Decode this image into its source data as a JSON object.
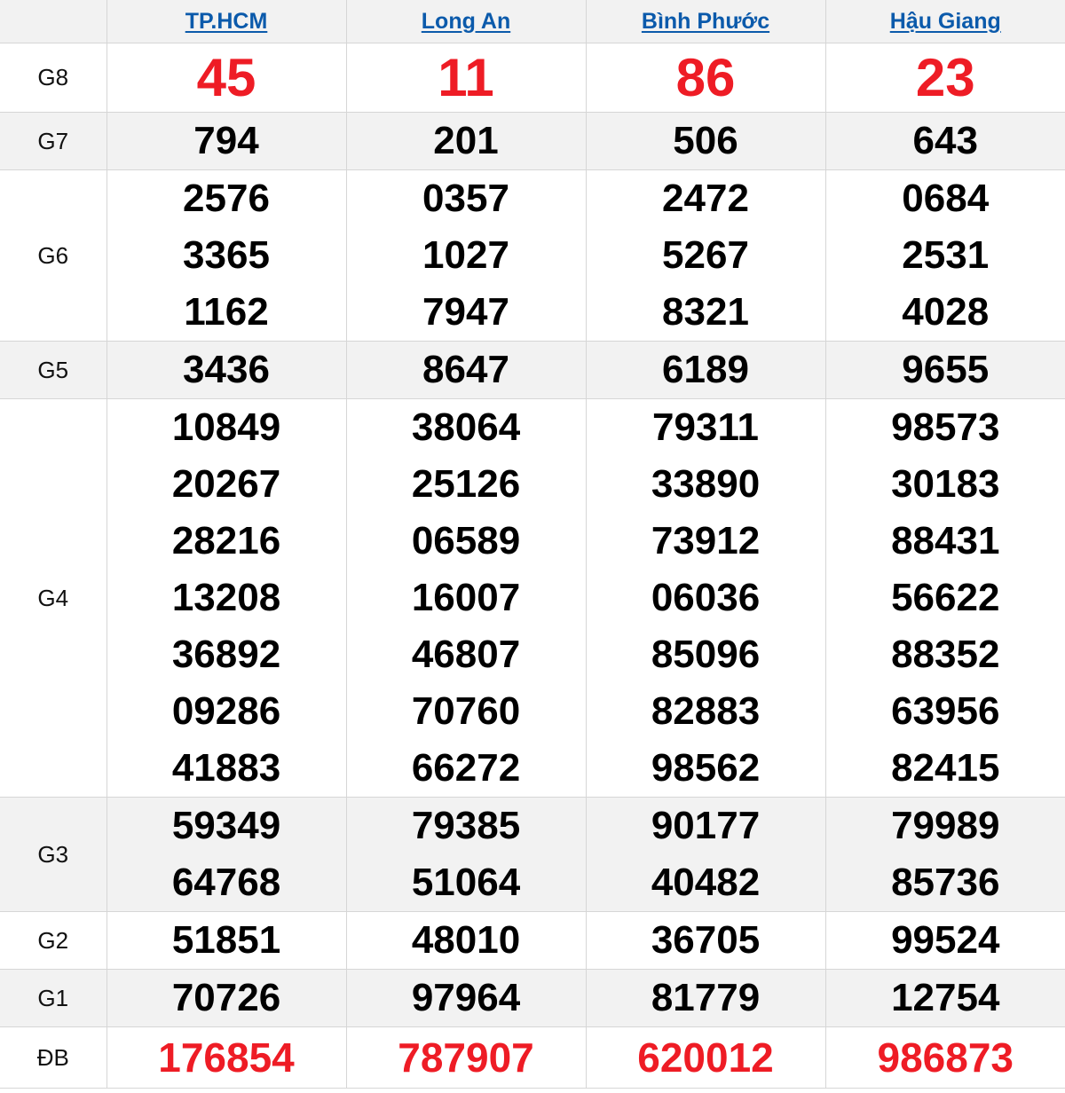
{
  "provinces": [
    "TP.HCM",
    "Long An",
    "Bình Phước",
    "Hậu Giang"
  ],
  "colors": {
    "header_link": "#0b5aab",
    "highlight": "#ee1c25",
    "row_alt": "#f2f2f2"
  },
  "prizes": [
    {
      "label": "G8",
      "values": [
        [
          "45"
        ],
        [
          "11"
        ],
        [
          "86"
        ],
        [
          "23"
        ]
      ]
    },
    {
      "label": "G7",
      "values": [
        [
          "794"
        ],
        [
          "201"
        ],
        [
          "506"
        ],
        [
          "643"
        ]
      ]
    },
    {
      "label": "G6",
      "values": [
        [
          "2576",
          "3365",
          "1162"
        ],
        [
          "0357",
          "1027",
          "7947"
        ],
        [
          "2472",
          "5267",
          "8321"
        ],
        [
          "0684",
          "2531",
          "4028"
        ]
      ]
    },
    {
      "label": "G5",
      "values": [
        [
          "3436"
        ],
        [
          "8647"
        ],
        [
          "6189"
        ],
        [
          "9655"
        ]
      ]
    },
    {
      "label": "G4",
      "values": [
        [
          "10849",
          "20267",
          "28216",
          "13208",
          "36892",
          "09286",
          "41883"
        ],
        [
          "38064",
          "25126",
          "06589",
          "16007",
          "46807",
          "70760",
          "66272"
        ],
        [
          "79311",
          "33890",
          "73912",
          "06036",
          "85096",
          "82883",
          "98562"
        ],
        [
          "98573",
          "30183",
          "88431",
          "56622",
          "88352",
          "63956",
          "82415"
        ]
      ]
    },
    {
      "label": "G3",
      "values": [
        [
          "59349",
          "64768"
        ],
        [
          "79385",
          "51064"
        ],
        [
          "90177",
          "40482"
        ],
        [
          "79989",
          "85736"
        ]
      ]
    },
    {
      "label": "G2",
      "values": [
        [
          "51851"
        ],
        [
          "48010"
        ],
        [
          "36705"
        ],
        [
          "99524"
        ]
      ]
    },
    {
      "label": "G1",
      "values": [
        [
          "70726"
        ],
        [
          "97964"
        ],
        [
          "81779"
        ],
        [
          "12754"
        ]
      ]
    },
    {
      "label": "ĐB",
      "values": [
        [
          "176854"
        ],
        [
          "787907"
        ],
        [
          "620012"
        ],
        [
          "986873"
        ]
      ]
    }
  ]
}
